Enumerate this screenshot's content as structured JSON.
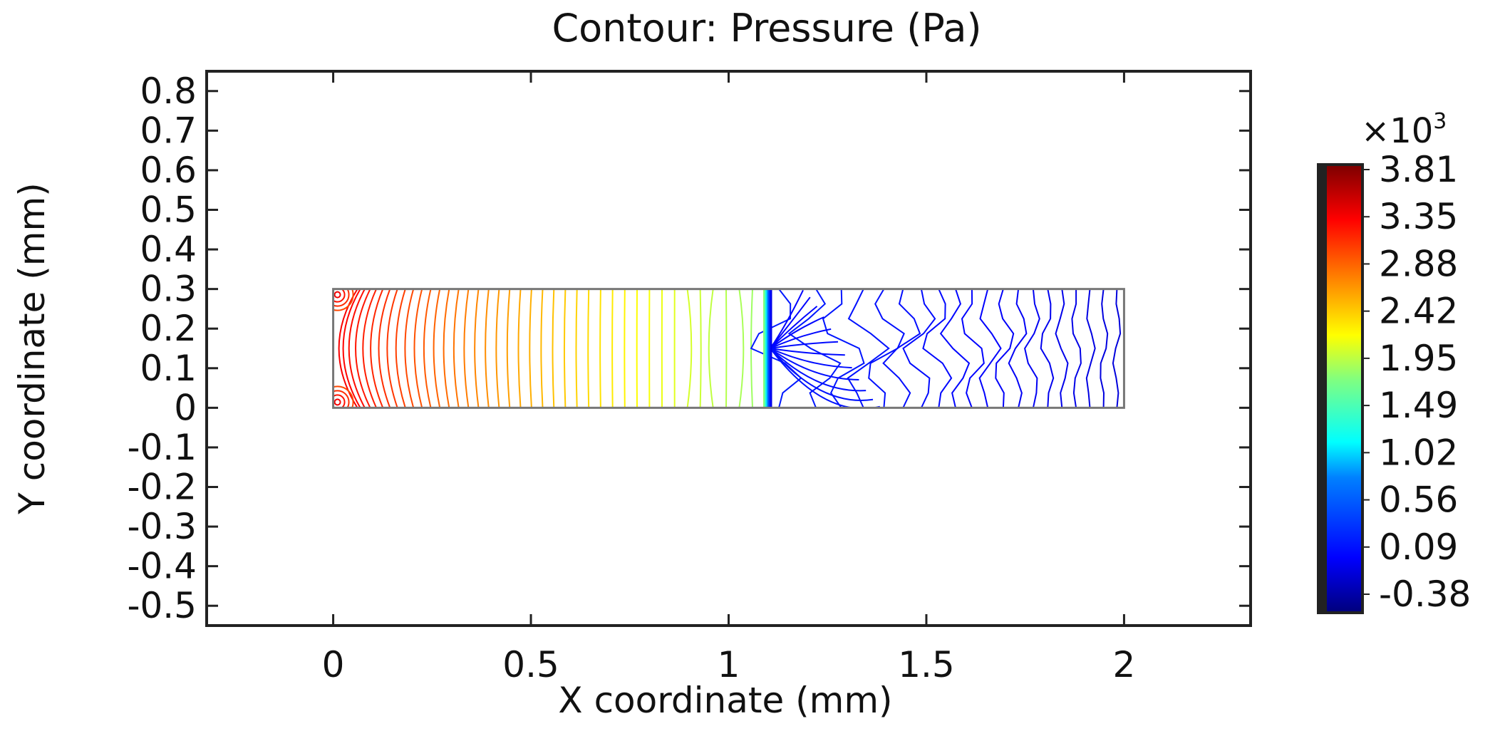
{
  "chart_data": {
    "type": "contour",
    "title": "Contour: Pressure (Pa)",
    "xlabel": "X coordinate (mm)",
    "ylabel": "Y coordinate (mm)",
    "xlim": [
      -0.32,
      2.32
    ],
    "ylim": [
      -0.55,
      0.85
    ],
    "x_ticks": [
      "0",
      "0.5",
      "1",
      "1.5",
      "2"
    ],
    "x_tick_values": [
      0,
      0.5,
      1,
      1.5,
      2
    ],
    "y_ticks": [
      "0.8",
      "0.7",
      "0.6",
      "0.5",
      "0.4",
      "0.3",
      "0.2",
      "0.1",
      "0",
      "-0.1",
      "-0.2",
      "-0.3",
      "-0.4",
      "-0.5"
    ],
    "y_tick_values": [
      0.8,
      0.7,
      0.6,
      0.5,
      0.4,
      0.3,
      0.2,
      0.1,
      0,
      -0.1,
      -0.2,
      -0.3,
      -0.4,
      -0.5
    ],
    "domain": {
      "x": [
        0,
        2
      ],
      "y": [
        0,
        0.3
      ]
    },
    "interface_x": 1.1,
    "colorbar": {
      "multiplier": "×10",
      "exponent": "3",
      "labels": [
        "3.81",
        "3.35",
        "2.88",
        "2.42",
        "1.95",
        "1.49",
        "1.02",
        "0.56",
        "0.09",
        "-0.38"
      ],
      "min": -0.38,
      "max": 4.0,
      "colormap": "rainbow"
    },
    "contour_levels_left_kPa": {
      "from": 3.5,
      "to": 2.0,
      "count": 40
    },
    "contour_levels_right_kPa": {
      "near_interface": 0.3,
      "outlet": 0.0,
      "count": 20
    },
    "grid": false
  }
}
